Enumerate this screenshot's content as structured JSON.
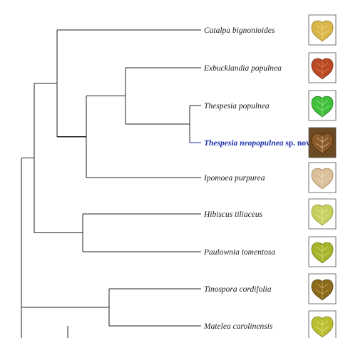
{
  "taxa": [
    {
      "name": "Catalpa bignonioides",
      "suffix": "",
      "highlight": false,
      "leaf": {
        "fill": "#d8b64a",
        "edge": "#9a7a1e",
        "vein": "#f3df95"
      }
    },
    {
      "name": "Exbucklandia populnea",
      "suffix": "",
      "highlight": false,
      "leaf": {
        "fill": "#b94a25",
        "edge": "#7c2a10",
        "vein": "#e39160"
      }
    },
    {
      "name": "Thespesia populnea",
      "suffix": "",
      "highlight": false,
      "leaf": {
        "fill": "#3fbf3a",
        "edge": "#1f7a1b",
        "vein": "#b6eda1"
      }
    },
    {
      "name": "Thespesia neopopulnea",
      "suffix": " sp. nov.",
      "highlight": true,
      "leaf": {
        "fill": "#8a5a2b",
        "edge": "#4b2b10",
        "vein": "#e6d3b0"
      }
    },
    {
      "name": "Ipomoea purpurea",
      "suffix": "",
      "highlight": false,
      "leaf": {
        "fill": "#d9c09a",
        "edge": "#a38456",
        "vein": "#f3e4c8"
      }
    },
    {
      "name": "Hibiscus tiliaceus",
      "suffix": "",
      "highlight": false,
      "leaf": {
        "fill": "#c6cf5f",
        "edge": "#8e962c",
        "vein": "#ecefb0"
      }
    },
    {
      "name": "Paulownia tomentosa",
      "suffix": "",
      "highlight": false,
      "leaf": {
        "fill": "#a7b52c",
        "edge": "#6c7814",
        "vein": "#dfe68f"
      }
    },
    {
      "name": "Tinospora cordifolia",
      "suffix": "",
      "highlight": false,
      "leaf": {
        "fill": "#8c6a1c",
        "edge": "#5a420c",
        "vein": "#d7bd72"
      }
    },
    {
      "name": "Matelea carolinensis",
      "suffix": "",
      "highlight": false,
      "leaf": {
        "fill": "#b9bf30",
        "edge": "#7b8014",
        "vein": "#e6ea8e"
      }
    }
  ],
  "colors": {
    "branch": "#222222",
    "highlight": "#1d2fb0",
    "thumb_border": "#555555"
  }
}
